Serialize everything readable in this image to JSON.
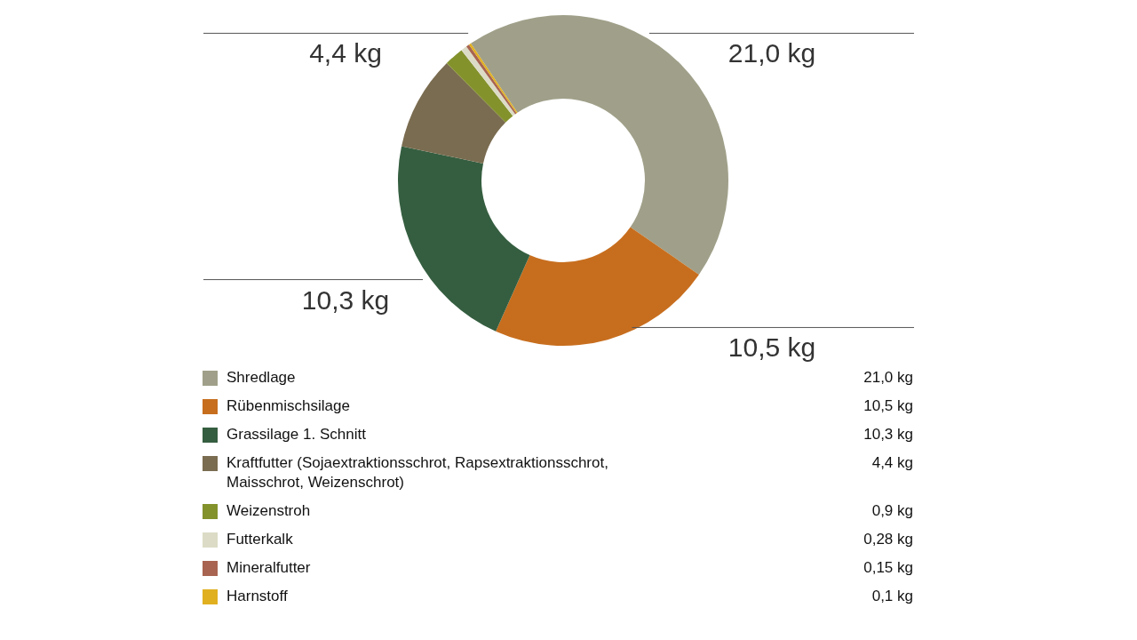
{
  "chart_data": {
    "type": "donut",
    "categories": [
      "Shredlage",
      "Rübenmischsilage",
      "Grassilage 1. Schnitt",
      "Kraftfutter (Sojaextraktionsschrot, Rapsextraktionsschrot, Maisschrot, Weizenschrot)",
      "Weizenstroh",
      "Futterkalk",
      "Mineralfutter",
      "Harnstoff"
    ],
    "values": [
      21.0,
      10.5,
      10.3,
      4.4,
      0.9,
      0.28,
      0.15,
      0.1
    ],
    "colors": [
      "#a0a08a",
      "#c76e1e",
      "#355e40",
      "#7a6c50",
      "#84922c",
      "#dcdcc6",
      "#a86450",
      "#e0b020"
    ],
    "value_labels": [
      "21,0 kg",
      "10,5 kg",
      "10,3 kg",
      "4,4 kg",
      "0,9 kg",
      "0,28 kg",
      "0,15 kg",
      "0,1 kg"
    ],
    "legend": "bottom"
  }
}
